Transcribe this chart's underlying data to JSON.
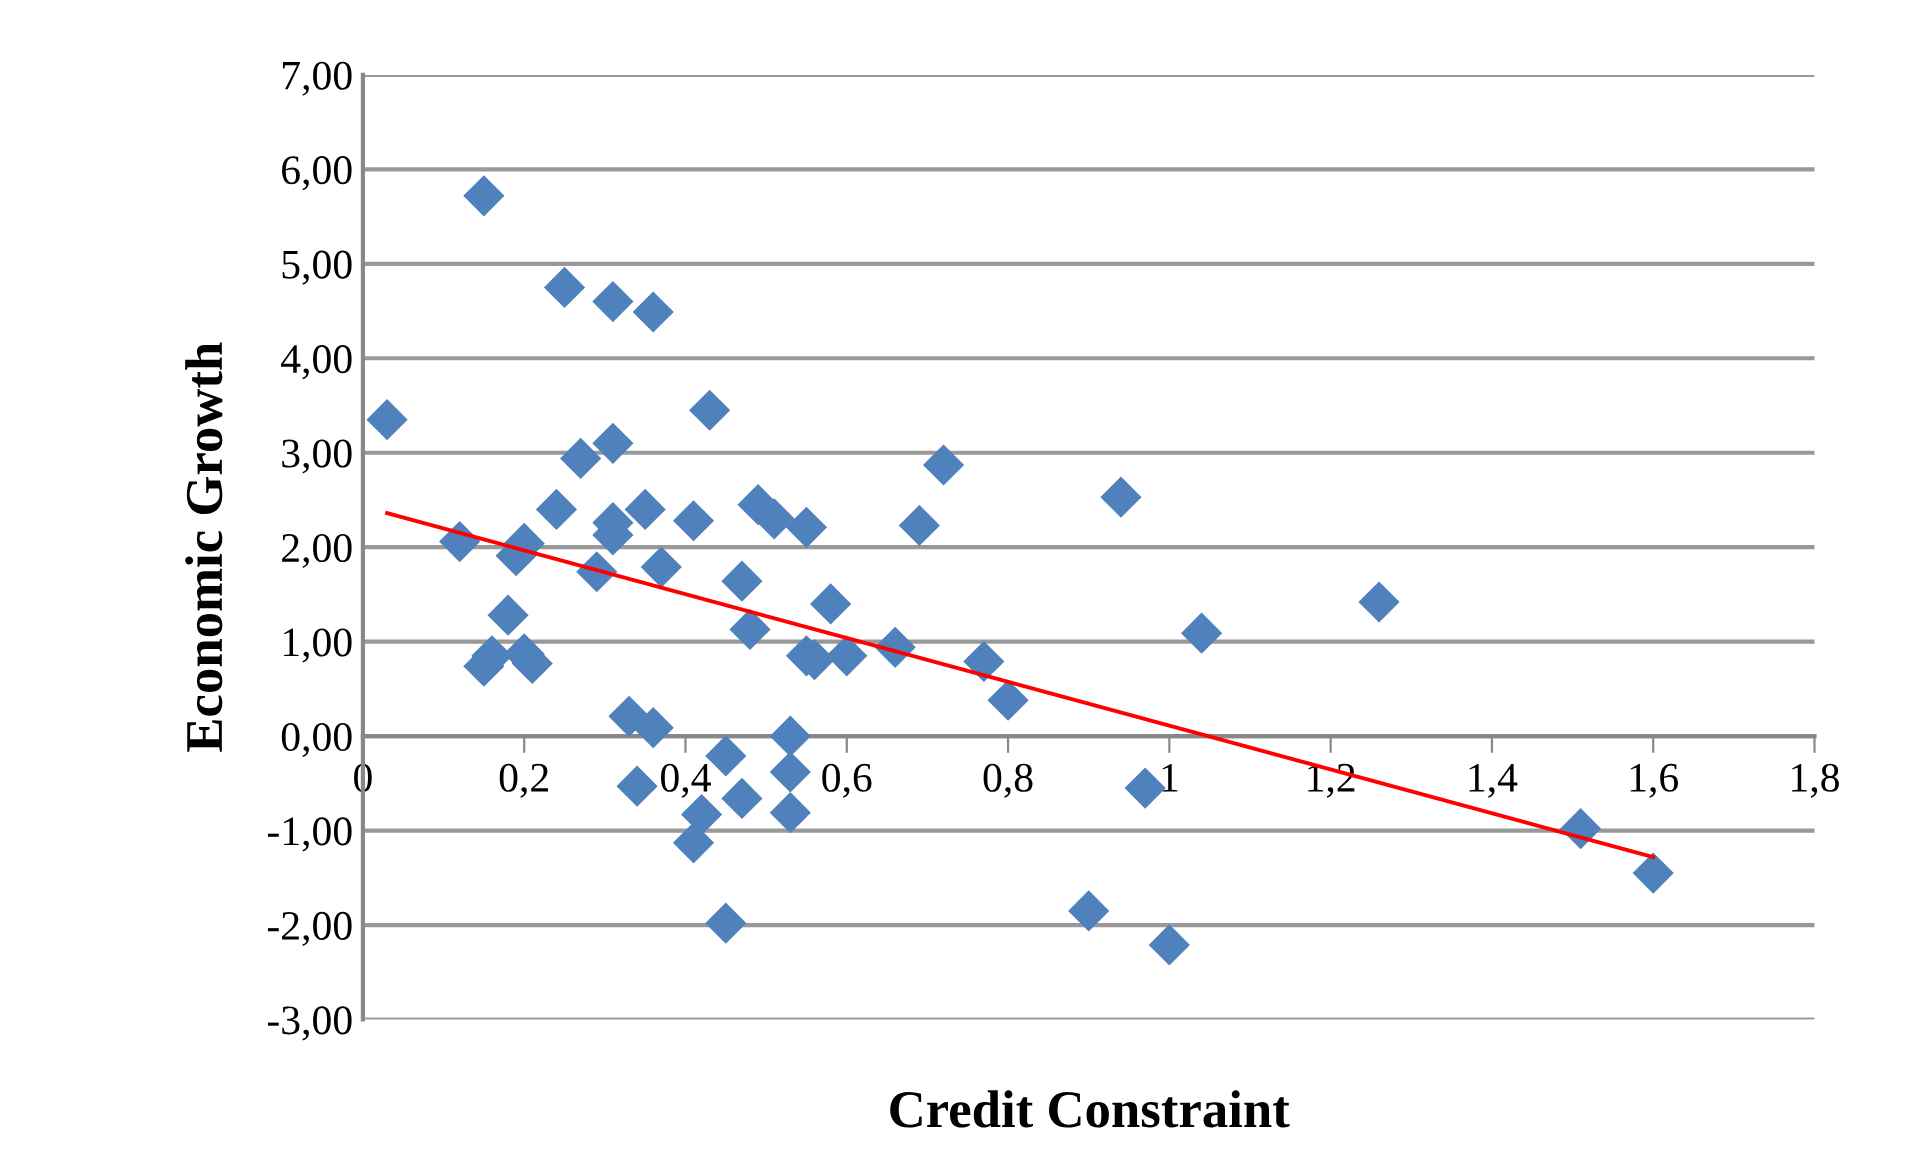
{
  "chart_data": {
    "type": "scatter",
    "xlabel": "Credit Constraint",
    "ylabel": "Economic Growth",
    "xlim": [
      0,
      1.8
    ],
    "ylim": [
      -3,
      7
    ],
    "xticks": [
      0,
      {
        "value": 0.2,
        "label": "0,2"
      },
      {
        "value": 0.4,
        "label": "0,4"
      },
      {
        "value": 0.6,
        "label": "0,6"
      },
      {
        "value": 0.8,
        "label": "0,8"
      },
      1,
      {
        "value": 1.2,
        "label": "1,2"
      },
      {
        "value": 1.4,
        "label": "1,4"
      },
      {
        "value": 1.6,
        "label": "1,6"
      },
      {
        "value": 1.8,
        "label": "1,8"
      }
    ],
    "yticks": [
      {
        "value": -3,
        "label": "-3,00"
      },
      {
        "value": -2,
        "label": "-2,00"
      },
      {
        "value": -1,
        "label": "-1,00"
      },
      {
        "value": 0,
        "label": "0,00"
      },
      {
        "value": 1,
        "label": "1,00"
      },
      {
        "value": 2,
        "label": "2,00"
      },
      {
        "value": 3,
        "label": "3,00"
      },
      {
        "value": 4,
        "label": "4,00"
      },
      {
        "value": 5,
        "label": "5,00"
      },
      {
        "value": 6,
        "label": "6,00"
      },
      {
        "value": 7,
        "label": "7,00"
      }
    ],
    "grid": "y",
    "legend": false,
    "series": [
      {
        "color": "#4f81bd",
        "marker": "diamond",
        "x": [
          0.03,
          0.15,
          0.25,
          0.31,
          0.36,
          0.43,
          0.31,
          0.27,
          0.72,
          0.94,
          0.49,
          0.51,
          0.24,
          0.35,
          0.41,
          0.31,
          0.31,
          0.55,
          0.69,
          0.12,
          0.2,
          0.19,
          0.29,
          0.37,
          0.47,
          0.58,
          1.26,
          0.18,
          0.48,
          1.04,
          0.16,
          0.15,
          0.2,
          0.21,
          0.55,
          0.56,
          0.6,
          0.66,
          0.77,
          0.8,
          0.33,
          0.36,
          0.53,
          0.45,
          0.53,
          0.34,
          0.47,
          0.42,
          0.53,
          0.41,
          0.97,
          1.51,
          1.6,
          0.9,
          1.0,
          0.45
        ],
        "values": [
          3.35,
          5.72,
          4.75,
          4.6,
          4.49,
          3.45,
          3.1,
          2.94,
          2.87,
          2.53,
          2.45,
          2.3,
          2.4,
          2.4,
          2.28,
          2.26,
          2.13,
          2.21,
          2.23,
          2.06,
          2.04,
          1.91,
          1.74,
          1.79,
          1.64,
          1.4,
          1.42,
          1.28,
          1.13,
          1.09,
          0.85,
          0.74,
          0.87,
          0.77,
          0.85,
          0.81,
          0.85,
          0.94,
          0.79,
          0.38,
          0.21,
          0.09,
          0.0,
          -0.21,
          -0.38,
          -0.53,
          -0.66,
          -0.83,
          -0.81,
          -1.13,
          -0.55,
          -0.98,
          -1.45,
          -1.85,
          -2.21,
          -1.98
        ]
      },
      {
        "type": "line",
        "color": "#ff0000",
        "marker": "none",
        "line_style": "solid",
        "x": [
          0.03,
          1.6
        ],
        "values": [
          2.36,
          -1.28
        ]
      }
    ]
  }
}
